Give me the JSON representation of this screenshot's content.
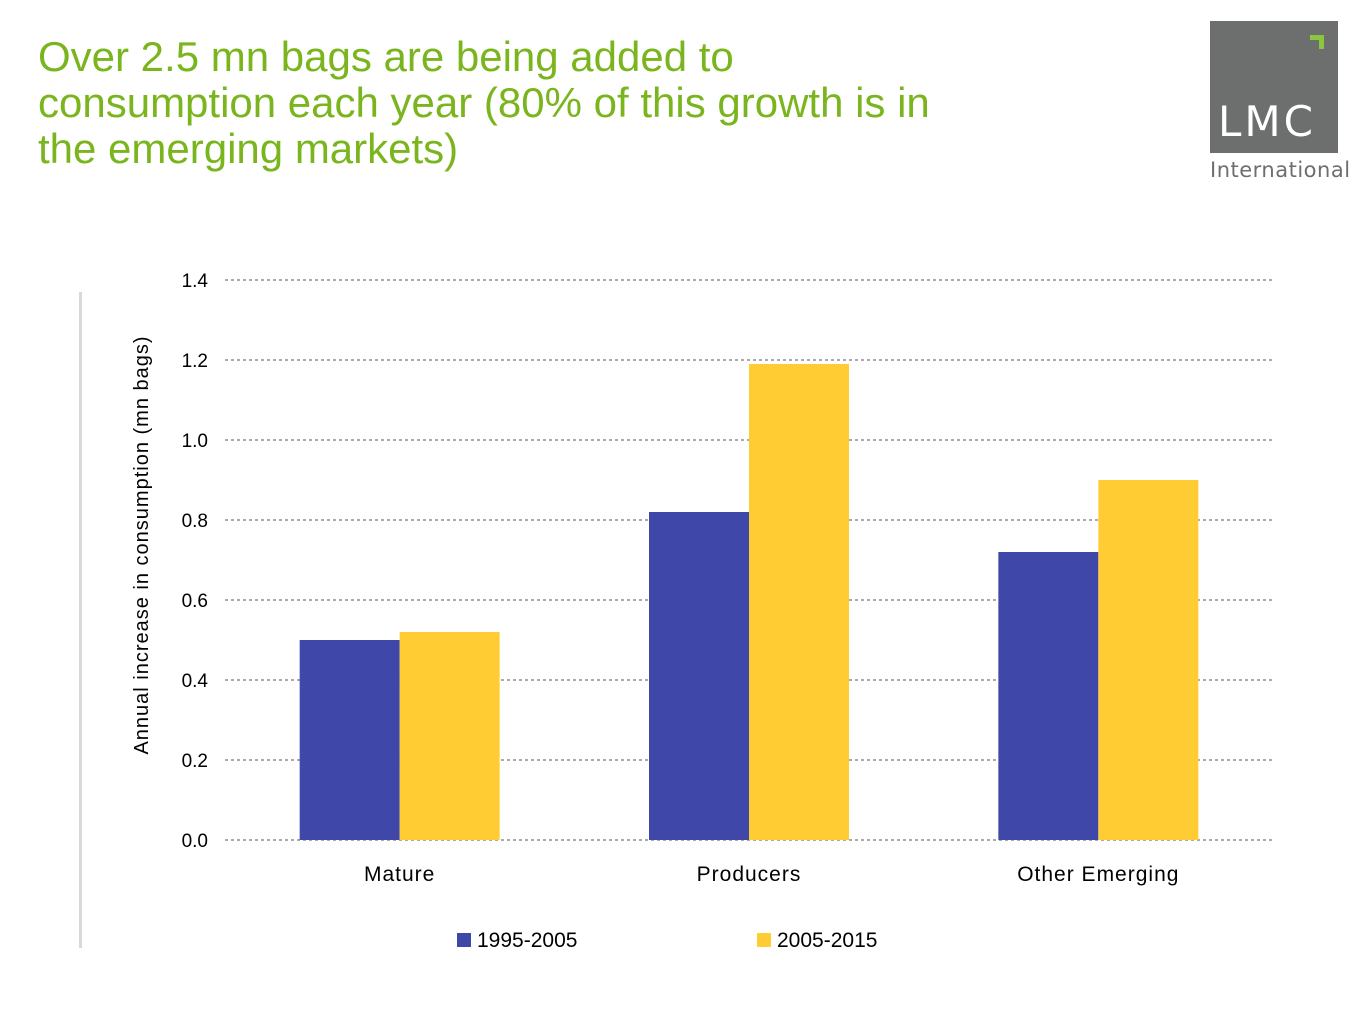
{
  "slide": {
    "title_lines": [
      "Over 2.5 mn bags are being added to",
      "consumption each year (80% of this growth is in",
      "the emerging markets)"
    ]
  },
  "logo": {
    "mark": "LMC",
    "subtitle": "International",
    "colors": {
      "background": "#6d6f6e",
      "accent": "#8cc63f"
    }
  },
  "chart_data": {
    "type": "bar",
    "title": "",
    "xlabel": "",
    "ylabel": "Annual increase in consumption (mn bags)",
    "categories": [
      "Mature",
      "Producers",
      "Other Emerging"
    ],
    "series": [
      {
        "name": "1995-2005",
        "color": "#3f48a8",
        "values": [
          0.5,
          0.82,
          0.72
        ]
      },
      {
        "name": "2005-2015",
        "color": "#ffcc33",
        "values": [
          0.52,
          1.19,
          0.9
        ]
      }
    ],
    "ylim": [
      0.0,
      1.4
    ],
    "yticks": [
      "0.0",
      "0.2",
      "0.4",
      "0.6",
      "0.8",
      "1.0",
      "1.2",
      "1.4"
    ],
    "grid": true,
    "legend_position": "bottom"
  }
}
